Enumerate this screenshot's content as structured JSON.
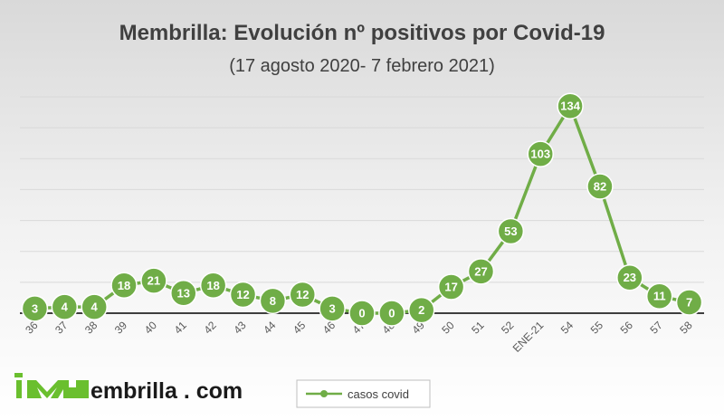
{
  "colors": {
    "series": "#70AD47",
    "gridline": "#d9d9d9",
    "axis": "#000000",
    "background_top": "#d9d9d9",
    "background_bottom": "#ffffff",
    "logo_green": "#6abf2e"
  },
  "logo": {
    "text": "embrilla . com",
    "icon": "membrilla-m-logo"
  },
  "chart_data": {
    "type": "line",
    "title": "Membrilla: Evolución nº positivos por Covid-19",
    "subtitle": "(17 agosto 2020- 7 febrero 2021)",
    "categories": [
      "36",
      "37",
      "38",
      "39",
      "40",
      "41",
      "42",
      "43",
      "44",
      "45",
      "46",
      "47",
      "48",
      "49",
      "50",
      "51",
      "52",
      "ENE-21",
      "54",
      "55",
      "56",
      "57",
      "58"
    ],
    "series": [
      {
        "name": "casos covid",
        "values": [
          3,
          4,
          4,
          18,
          21,
          13,
          18,
          12,
          8,
          12,
          3,
          0,
          0,
          2,
          17,
          27,
          53,
          103,
          134,
          82,
          23,
          11,
          7
        ]
      }
    ],
    "ylim": [
      0,
      140
    ],
    "grid": true,
    "data_labels": true,
    "legend": "bottom"
  }
}
